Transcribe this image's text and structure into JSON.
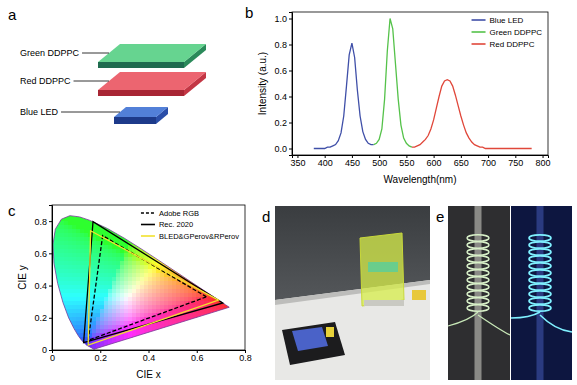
{
  "figure": {
    "panel_labels": [
      "a",
      "b",
      "c",
      "d",
      "e"
    ]
  },
  "diagram": {
    "layers": [
      "Green DDPPC",
      "Red DDPPC",
      "Blue LED"
    ]
  },
  "chart_data": [
    {
      "type": "line",
      "x_label": "Wavelength(nm)",
      "y_label": "Intensity (a.u.)",
      "x": [
        380,
        385,
        390,
        395,
        400,
        405,
        410,
        415,
        420,
        425,
        430,
        435,
        440,
        445,
        450,
        455,
        460,
        465,
        470,
        475,
        480,
        485,
        490,
        495,
        500,
        505,
        510,
        515,
        520,
        525,
        530,
        535,
        540,
        545,
        550,
        555,
        560,
        565,
        570,
        575,
        580,
        585,
        590,
        595,
        600,
        605,
        610,
        615,
        620,
        625,
        630,
        635,
        640,
        645,
        650,
        655,
        660,
        665,
        670,
        675,
        680,
        685,
        690,
        695,
        700,
        705,
        710,
        715,
        720,
        725,
        730,
        735,
        740,
        745,
        750,
        755,
        760,
        765,
        770,
        775,
        780
      ],
      "series": [
        {
          "name": "Blue LED",
          "color": "#3f4fa8",
          "values": [
            0,
            0,
            0,
            0,
            0,
            0.01,
            0.01,
            0.02,
            0.03,
            0.06,
            0.12,
            0.25,
            0.48,
            0.72,
            0.81,
            0.7,
            0.45,
            0.25,
            0.13,
            0.07,
            0.04,
            0.03,
            0.03,
            null,
            null,
            null,
            null,
            null,
            null,
            null,
            null,
            null,
            null,
            null,
            null,
            null,
            null,
            null,
            null,
            null,
            null,
            null,
            null,
            null,
            null,
            null,
            null,
            null,
            null,
            null,
            null,
            null,
            null,
            null,
            null,
            null,
            null,
            null,
            null,
            null,
            null,
            null,
            null,
            null,
            null,
            null,
            null,
            null,
            null,
            null,
            null,
            null,
            null,
            null,
            null,
            null,
            null,
            null,
            null,
            null,
            null
          ]
        },
        {
          "name": "Green DDPPC",
          "color": "#55c24a",
          "values": [
            null,
            null,
            null,
            null,
            null,
            null,
            null,
            null,
            null,
            null,
            null,
            null,
            null,
            null,
            null,
            null,
            null,
            null,
            null,
            null,
            null,
            null,
            0.03,
            0.04,
            0.07,
            0.15,
            0.38,
            0.75,
            1.0,
            0.92,
            0.65,
            0.38,
            0.18,
            0.08,
            0.04,
            0.02,
            0.01,
            null,
            null,
            null,
            null,
            null,
            null,
            null,
            null,
            null,
            null,
            null,
            null,
            null,
            null,
            null,
            null,
            null,
            null,
            null,
            null,
            null,
            null,
            null,
            null,
            null,
            null,
            null,
            null,
            null,
            null,
            null,
            null,
            null,
            null,
            null,
            null,
            null,
            null,
            null,
            null,
            null,
            null,
            null,
            null
          ]
        },
        {
          "name": "Red DDPPC",
          "color": "#e0473a",
          "values": [
            null,
            null,
            null,
            null,
            null,
            null,
            null,
            null,
            null,
            null,
            null,
            null,
            null,
            null,
            null,
            null,
            null,
            null,
            null,
            null,
            null,
            null,
            null,
            null,
            null,
            null,
            null,
            null,
            null,
            null,
            null,
            null,
            null,
            null,
            null,
            null,
            0.01,
            0.01,
            0.02,
            0.03,
            0.05,
            0.07,
            0.1,
            0.15,
            0.22,
            0.31,
            0.4,
            0.48,
            0.52,
            0.53,
            0.52,
            0.48,
            0.41,
            0.33,
            0.25,
            0.18,
            0.12,
            0.08,
            0.05,
            0.03,
            0.02,
            0.01,
            0.01,
            0,
            0,
            0,
            0,
            0,
            0,
            0,
            0,
            0,
            0,
            0,
            0,
            0,
            0,
            0,
            0,
            0,
            0
          ]
        }
      ],
      "xlim": [
        340,
        810
      ],
      "ylim": [
        -0.05,
        1.05
      ],
      "xticks": [
        350,
        400,
        450,
        500,
        550,
        600,
        650,
        700,
        750,
        800
      ],
      "yticks": [
        {
          "value": 0,
          "label": "0.0"
        },
        0.2,
        0.4,
        0.6,
        0.8,
        {
          "value": 1,
          "label": "1.0"
        }
      ],
      "legend": "upper right"
    },
    {
      "type": "line",
      "x_label": "CIE x",
      "y_label": "CIE y",
      "series": [
        {
          "type": "area",
          "x": [
            0.1741,
            0.144,
            0.1241,
            0.1096,
            0.0913,
            0.0687,
            0.0454,
            0.0235,
            0.0082,
            0.0039,
            0.0139,
            0.0389,
            0.0743,
            0.1142,
            0.1547,
            0.2296,
            0.3016,
            0.3731,
            0.4441,
            0.5125,
            0.5752,
            0.627,
            0.6915,
            0.719,
            0.7347
          ],
          "values": [
            0.005,
            0.0297,
            0.0578,
            0.0868,
            0.1327,
            0.2007,
            0.295,
            0.4127,
            0.5384,
            0.6548,
            0.7502,
            0.812,
            0.8338,
            0.8262,
            0.8059,
            0.7543,
            0.6923,
            0.6245,
            0.5547,
            0.4866,
            0.4242,
            0.3725,
            0.3083,
            0.2809,
            0.2653
          ]
        },
        {
          "name": "Adobe RGB",
          "color": "#000000",
          "line_style": "dashed",
          "x": [
            0.64,
            0.21,
            0.15
          ],
          "values": [
            0.33,
            0.71,
            0.06
          ]
        },
        {
          "name": "Rec. 2020",
          "color": "#000000",
          "line_style": "solid",
          "x": [
            0.708,
            0.17,
            0.131
          ],
          "values": [
            0.292,
            0.797,
            0.046
          ]
        },
        {
          "name": "BLED&GPerov&RPerov",
          "color": "#f2e22e",
          "line_style": "solid",
          "x": [
            0.69,
            0.16,
            0.15
          ],
          "values": [
            0.31,
            0.74,
            0.03
          ]
        }
      ],
      "xlim": [
        0,
        0.8
      ],
      "ylim": [
        0,
        0.9
      ],
      "xticks": [
        0,
        0.2,
        0.4,
        0.6,
        0.8
      ],
      "yticks": [
        0,
        0.2,
        0.4,
        0.6,
        0.8
      ],
      "legend": "upper right"
    }
  ]
}
